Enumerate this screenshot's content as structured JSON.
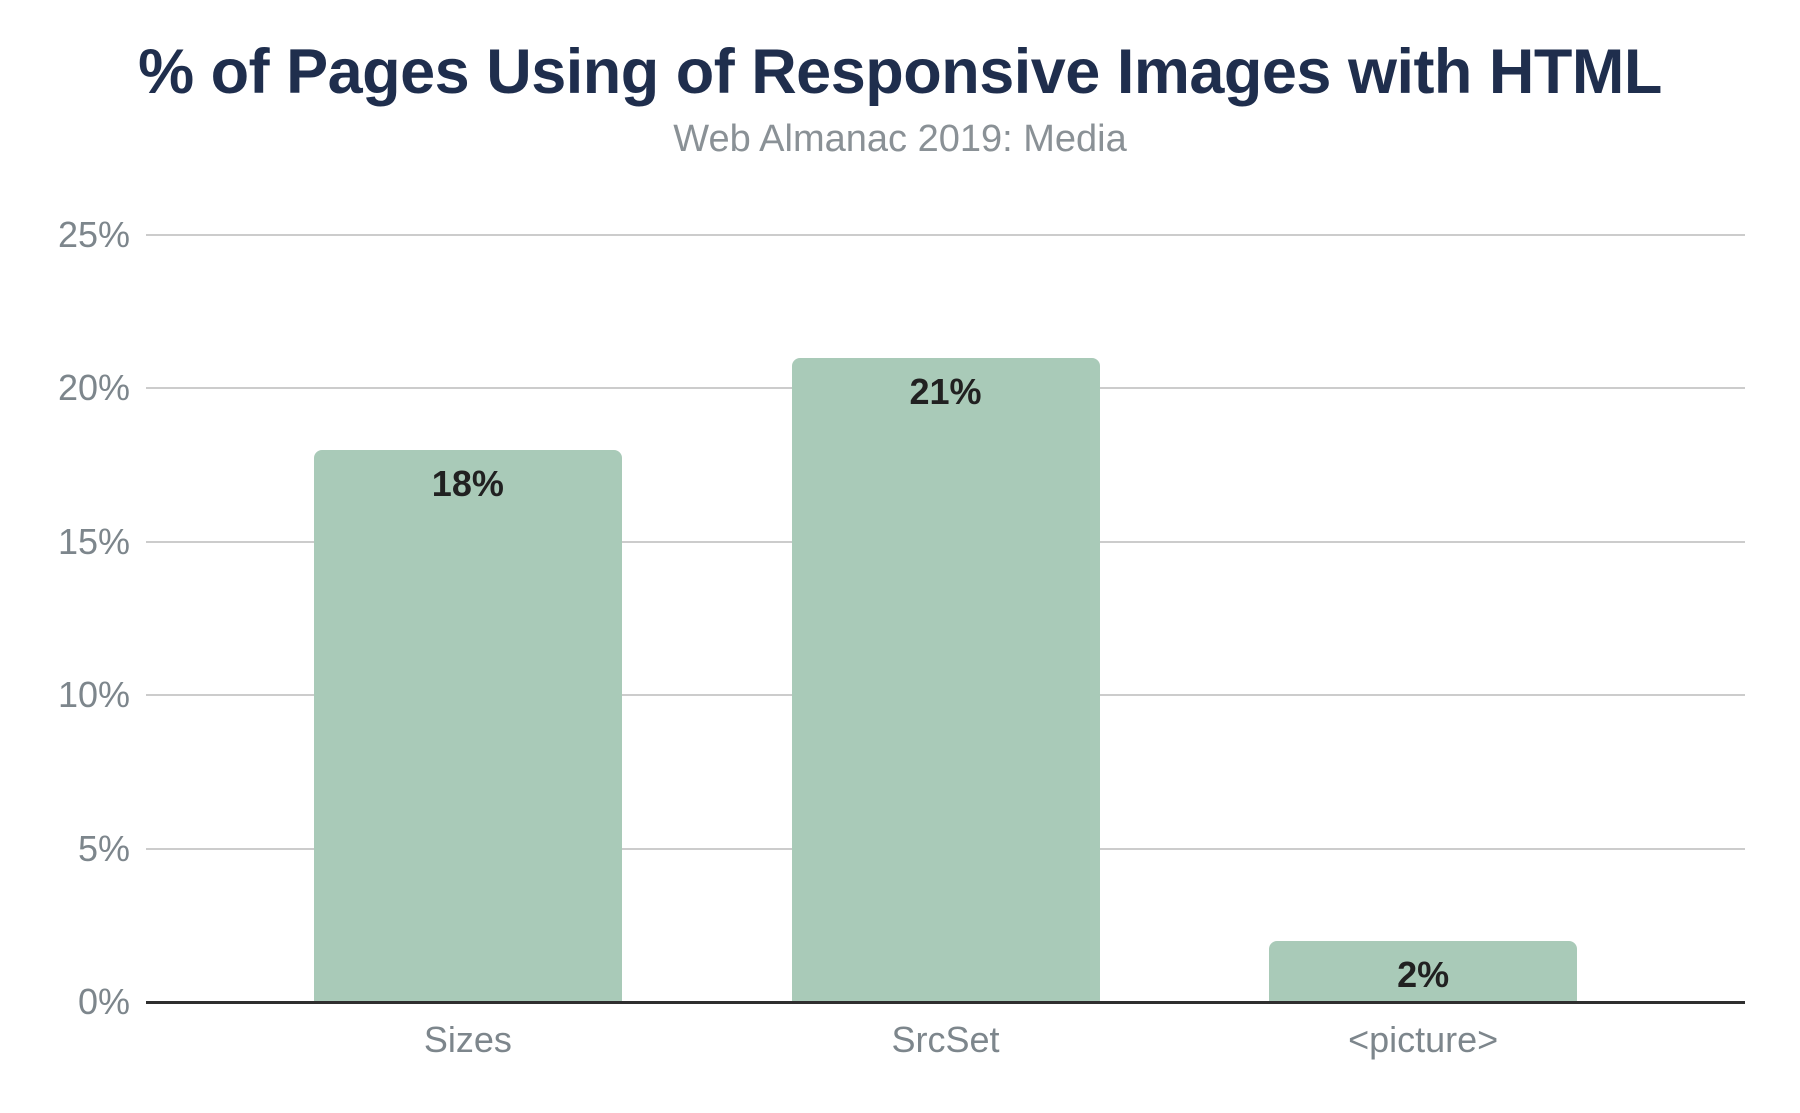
{
  "chart_data": {
    "type": "bar",
    "title": "% of Pages Using of Responsive Images with HTML",
    "subtitle": "Web Almanac 2019: Media",
    "categories": [
      "Sizes",
      "SrcSet",
      "<picture>"
    ],
    "values": [
      18,
      21,
      2
    ],
    "value_labels": [
      "18%",
      "21%",
      "2%"
    ],
    "xlabel": "",
    "ylabel": "",
    "ylim": [
      0,
      25
    ],
    "yticks": [
      0,
      5,
      10,
      15,
      20,
      25
    ],
    "ytick_labels": [
      "0%",
      "5%",
      "10%",
      "15%",
      "20%",
      "25%"
    ],
    "grid": true,
    "legend": "none",
    "colors": {
      "bar": "#a9cab8",
      "title": "#1f2e4d",
      "subtitle": "#8a9196",
      "axis_label": "#7d868c",
      "gridline": "#cccccc",
      "baseline": "#2f2f2f",
      "value_label": "#212121",
      "background": "#ffffff"
    }
  }
}
